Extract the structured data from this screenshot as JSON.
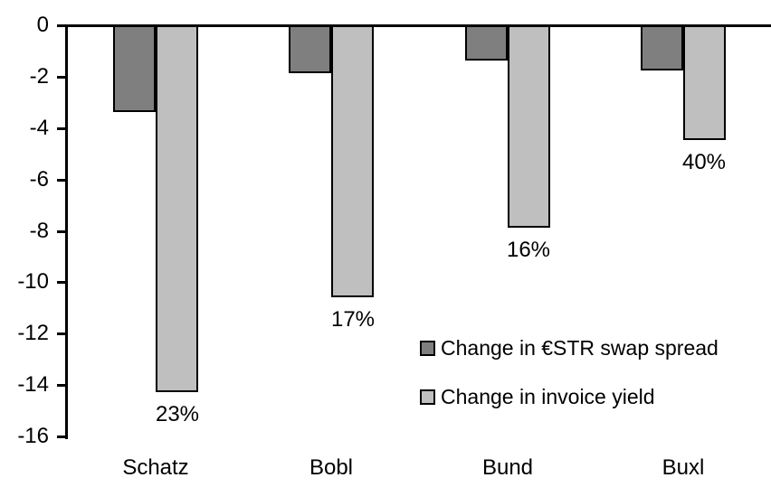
{
  "chart_data": {
    "type": "bar",
    "orientation": "vertical",
    "title": "",
    "xlabel": "",
    "ylabel": "",
    "ylim": [
      -16,
      0
    ],
    "ytick_values": [
      0,
      -2,
      -4,
      -6,
      -8,
      -10,
      -12,
      -14,
      -16
    ],
    "ytick_labels": [
      "0",
      "-2",
      "-4",
      "-6",
      "-8",
      "-10",
      "-12",
      "-14",
      "-16"
    ],
    "grid": false,
    "background_color": "#FFFFFF",
    "axis_color": "#000000",
    "bar_border_color": "#000000",
    "legend_position": "inside-right",
    "categories": [
      "Schatz",
      "Bobl",
      "Bund",
      "Buxl"
    ],
    "series": [
      {
        "name": "Change in €STR swap spread",
        "color": "#7F7F7F",
        "values": [
          -3.3,
          -1.8,
          -1.3,
          -1.7
        ]
      },
      {
        "name": "Change in invoice yield",
        "color": "#BFBFBF",
        "values": [
          -14.2,
          -10.5,
          -7.8,
          -4.4
        ],
        "point_labels": [
          "23%",
          "17%",
          "16%",
          "40%"
        ]
      }
    ]
  }
}
